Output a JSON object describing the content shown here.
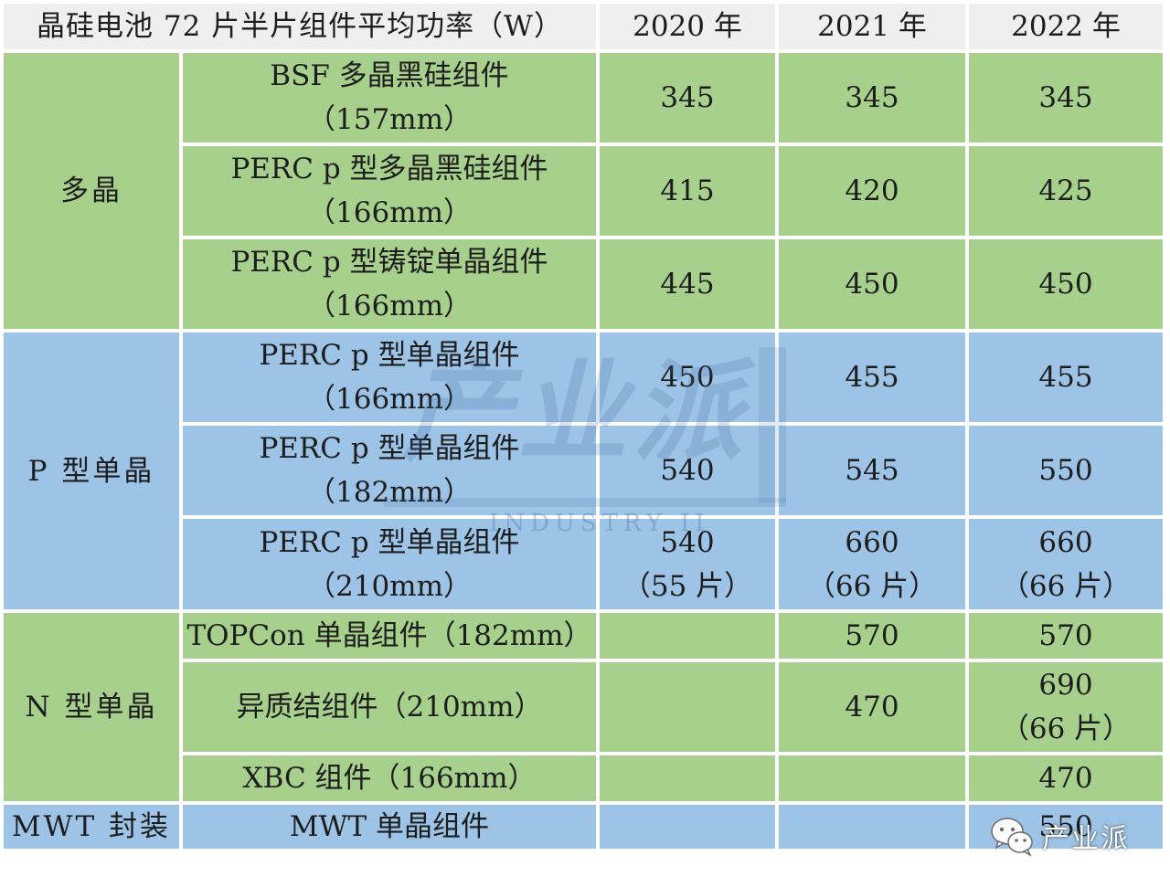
{
  "table": {
    "header": {
      "title": "晶硅电池 72 片半片组件平均功率（W）",
      "years": [
        "2020 年",
        "2021 年",
        "2022 年"
      ]
    },
    "groups": {
      "poly": "多晶",
      "p_mono": "P 型单晶",
      "n_mono": "N 型单晶",
      "mwt": "MWT 封装"
    },
    "rows": [
      {
        "product": [
          "BSF 多晶黑硅组件",
          "（157mm）"
        ],
        "v2020": [
          "345"
        ],
        "v2021": [
          "345"
        ],
        "v2022": [
          "345"
        ]
      },
      {
        "product": [
          "PERC p 型多晶黑硅组件",
          "（166mm）"
        ],
        "v2020": [
          "415"
        ],
        "v2021": [
          "420"
        ],
        "v2022": [
          "425"
        ]
      },
      {
        "product": [
          "PERC p 型铸锭单晶组件",
          "（166mm）"
        ],
        "v2020": [
          "445"
        ],
        "v2021": [
          "450"
        ],
        "v2022": [
          "450"
        ]
      },
      {
        "product": [
          "PERC p 型单晶组件",
          "（166mm）"
        ],
        "v2020": [
          "450"
        ],
        "v2021": [
          "455"
        ],
        "v2022": [
          "455"
        ]
      },
      {
        "product": [
          "PERC p 型单晶组件",
          "（182mm）"
        ],
        "v2020": [
          "540"
        ],
        "v2021": [
          "545"
        ],
        "v2022": [
          "550"
        ]
      },
      {
        "product": [
          "PERC p 型单晶组件",
          "（210mm）"
        ],
        "v2020": [
          "540",
          "（55 片）"
        ],
        "v2021": [
          "660",
          "（66 片）"
        ],
        "v2022": [
          "660",
          "（66 片）"
        ]
      },
      {
        "product": [
          "TOPCon 单晶组件（182mm）"
        ],
        "v2020": [
          ""
        ],
        "v2021": [
          "570"
        ],
        "v2022": [
          "570"
        ]
      },
      {
        "product": [
          "异质结组件（210mm）"
        ],
        "v2020": [
          ""
        ],
        "v2021": [
          "470"
        ],
        "v2022": [
          "690",
          "（66 片）"
        ]
      },
      {
        "product": [
          "XBC 组件（166mm）"
        ],
        "v2020": [
          ""
        ],
        "v2021": [
          ""
        ],
        "v2022": [
          "470"
        ]
      },
      {
        "product": [
          "MWT 单晶组件"
        ],
        "v2020": [
          ""
        ],
        "v2021": [
          ""
        ],
        "v2022": [
          "550"
        ]
      }
    ]
  },
  "watermark": {
    "text": "产业派",
    "subtext": "INDUSTRY II"
  },
  "brand": {
    "icon": "wechat-icon",
    "text": "产业派"
  },
  "colors": {
    "header_bg": "#efefef",
    "green": "#a8d08d",
    "blue": "#9dc3e6"
  }
}
